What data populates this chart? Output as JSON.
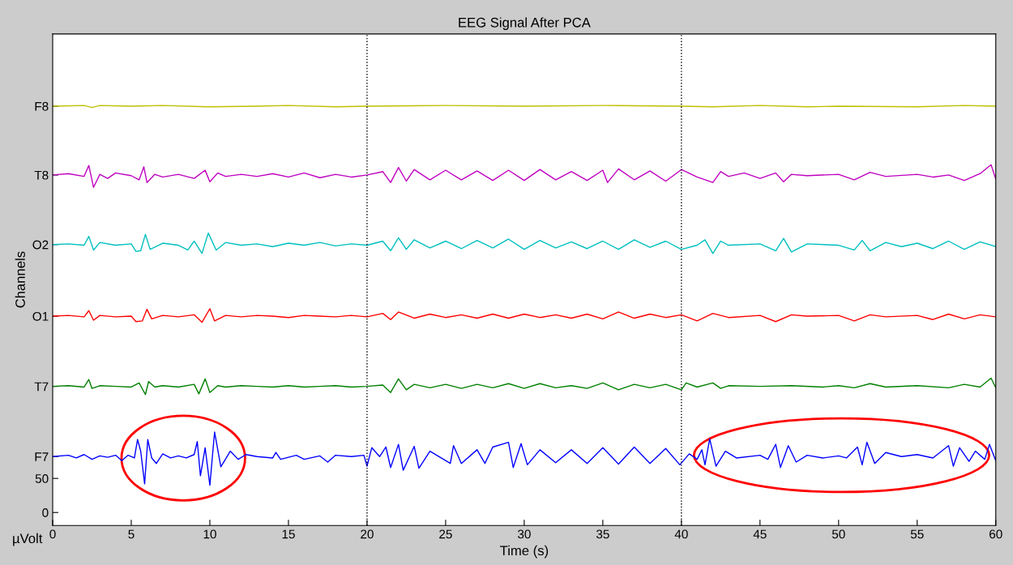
{
  "chart_data": {
    "type": "line",
    "title": "EEG Signal After PCA",
    "xlabel": "Time (s)",
    "ylabel": "Channels",
    "annotations": [
      "µVolt"
    ],
    "xlim": [
      0,
      60
    ],
    "xticks": [
      0,
      5,
      10,
      15,
      20,
      25,
      30,
      35,
      40,
      45,
      50,
      55,
      60
    ],
    "ylim": [
      -19,
      702
    ],
    "yticks": [
      0,
      50,
      {
        "value": 82,
        "label": "F7"
      },
      {
        "value": 185,
        "label": "T7"
      },
      {
        "value": 288,
        "label": "O1"
      },
      {
        "value": 393,
        "label": "O2"
      },
      {
        "value": 495,
        "label": "T8"
      },
      {
        "value": 596,
        "label": "F8"
      }
    ],
    "grid": false,
    "legend": false,
    "marker": "none",
    "line_style": "solid",
    "ref_lines": [
      {
        "axis": "x",
        "value": 20,
        "color": "#000000",
        "line_style": "dotted"
      },
      {
        "axis": "x",
        "value": 40,
        "color": "#000000",
        "line_style": "dotted"
      }
    ],
    "series": [
      {
        "color": "#0000ff",
        "x": [
          0,
          1,
          1.5,
          2,
          2.5,
          3,
          3.5,
          4,
          4.4,
          4.8,
          5.2,
          5.4,
          5.6,
          5.85,
          6.05,
          6.3,
          6.6,
          7.0,
          7.5,
          8,
          8.5,
          9.0,
          9.2,
          9.4,
          9.7,
          10.0,
          10.3,
          10.7,
          11.3,
          11.8,
          12.3,
          13,
          14,
          14.2,
          14.5,
          15.5,
          16,
          17,
          17.5,
          18,
          19,
          19.8,
          20.0,
          20.3,
          20.8,
          21.2,
          21.5,
          22,
          22.3,
          23,
          23.3,
          24,
          25.3,
          25.5,
          26,
          27,
          27.5,
          28,
          29,
          29.3,
          29.8,
          30.2,
          31,
          32,
          33,
          34,
          35,
          36,
          37,
          38,
          39,
          39.9,
          40.5,
          41,
          41.3,
          41.5,
          41.8,
          42.2,
          42.8,
          43.5,
          45,
          45.5,
          46,
          46.3,
          46.8,
          47.3,
          48,
          49,
          50,
          50.5,
          51.2,
          51.5,
          51.8,
          52.3,
          53,
          54,
          55,
          56,
          57,
          57.3,
          57.7,
          58.3,
          58.7,
          59.3,
          59.6,
          60
        ],
        "values": [
          82,
          84,
          80,
          85,
          78,
          83,
          81,
          84,
          76,
          84,
          80,
          107,
          90,
          42,
          107,
          80,
          72,
          86,
          80,
          83,
          80,
          85,
          104,
          54,
          95,
          40,
          118,
          67,
          90,
          78,
          85,
          82,
          80,
          88,
          78,
          84,
          78,
          83,
          74,
          84,
          82,
          84,
          68,
          95,
          82,
          96,
          66,
          100,
          62,
          97,
          65,
          90,
          72,
          98,
          72,
          92,
          72,
          96,
          103,
          66,
          101,
          70,
          92,
          73,
          92,
          72,
          95,
          71,
          96,
          72,
          94,
          70,
          86,
          78,
          92,
          70,
          108,
          68,
          90,
          80,
          84,
          78,
          100,
          66,
          98,
          74,
          84,
          80,
          83,
          80,
          96,
          70,
          103,
          72,
          88,
          82,
          85,
          80,
          98,
          68,
          95,
          75,
          90,
          78,
          100,
          76
        ]
      },
      {
        "color": "#008000",
        "x": [
          0,
          1,
          2,
          2.3,
          2.5,
          3,
          4,
          5,
          5.5,
          5.9,
          6.1,
          6.5,
          7,
          8,
          9,
          9.3,
          9.7,
          10,
          10.5,
          11,
          12,
          13,
          14,
          15,
          16,
          17,
          18,
          19,
          20,
          21,
          21.5,
          22,
          22.5,
          23,
          24,
          25,
          26,
          27,
          28,
          29,
          30,
          31,
          32,
          33,
          34,
          35,
          36,
          37,
          38,
          39,
          40,
          40.3,
          41,
          42,
          42.5,
          43,
          45,
          47,
          49,
          50,
          51,
          52,
          53,
          55,
          57,
          58,
          59,
          59.7,
          60
        ],
        "values": [
          185,
          186,
          184,
          195,
          182,
          186,
          185,
          184,
          190,
          173,
          192,
          184,
          186,
          184,
          188,
          174,
          196,
          176,
          186,
          184,
          186,
          185,
          184,
          186,
          184,
          185,
          186,
          184,
          185,
          187,
          176,
          196,
          180,
          188,
          183,
          188,
          182,
          188,
          183,
          189,
          182,
          189,
          183,
          186,
          182,
          190,
          180,
          188,
          183,
          188,
          180,
          190,
          184,
          190,
          182,
          186,
          185,
          186,
          184,
          186,
          183,
          189,
          184,
          186,
          183,
          188,
          184,
          197,
          183
        ]
      },
      {
        "color": "#ff0000",
        "x": [
          0,
          1,
          2,
          2.3,
          2.6,
          3,
          4,
          5,
          5.3,
          5.7,
          6.0,
          6.3,
          7,
          8,
          9,
          9.5,
          10.0,
          10.3,
          11,
          12,
          13,
          14,
          15,
          16,
          17,
          18,
          19,
          20,
          21,
          21.5,
          22,
          23,
          24,
          25,
          26,
          27,
          28,
          29,
          30,
          31,
          32,
          33,
          34,
          35,
          36,
          37,
          38,
          39,
          40,
          41,
          42,
          43,
          45,
          46,
          47,
          48,
          50,
          51,
          52,
          53,
          55,
          56,
          57,
          58,
          59,
          60
        ],
        "values": [
          288,
          289,
          287,
          296,
          282,
          289,
          287,
          288,
          280,
          281,
          298,
          284,
          289,
          287,
          290,
          279,
          299,
          281,
          289,
          287,
          289,
          288,
          286,
          289,
          288,
          287,
          289,
          287,
          292,
          283,
          294,
          285,
          291,
          286,
          290,
          285,
          291,
          285,
          291,
          286,
          290,
          285,
          291,
          284,
          294,
          285,
          291,
          286,
          290,
          281,
          292,
          286,
          289,
          280,
          290,
          288,
          289,
          281,
          290,
          287,
          289,
          283,
          291,
          284,
          290,
          287
        ]
      },
      {
        "color": "#00bfbf",
        "x": [
          0,
          1,
          2,
          2.3,
          2.6,
          3,
          4,
          5,
          5.3,
          5.6,
          5.9,
          6.2,
          7,
          8,
          8.6,
          9.0,
          9.5,
          9.9,
          10.4,
          11,
          12,
          13,
          14,
          15,
          16,
          17,
          18,
          19,
          20,
          21,
          21.5,
          22,
          22.5,
          23,
          24,
          25,
          26,
          27,
          28,
          29,
          30,
          31,
          32,
          33,
          34,
          35,
          36,
          37,
          38,
          39,
          40,
          41,
          41.5,
          42,
          42.5,
          43,
          45,
          46,
          46.5,
          47,
          48,
          50,
          51,
          51.5,
          52,
          53,
          54,
          55,
          56,
          57,
          58,
          59,
          60
        ],
        "values": [
          393,
          394,
          392,
          405,
          385,
          396,
          392,
          394,
          383,
          384,
          408,
          386,
          395,
          392,
          385,
          398,
          380,
          410,
          385,
          396,
          392,
          394,
          390,
          395,
          392,
          396,
          391,
          394,
          392,
          398,
          384,
          403,
          386,
          400,
          388,
          398,
          387,
          399,
          388,
          401,
          386,
          399,
          388,
          397,
          387,
          398,
          386,
          400,
          389,
          398,
          386,
          392,
          400,
          380,
          398,
          392,
          394,
          384,
          402,
          382,
          394,
          392,
          385,
          399,
          384,
          396,
          390,
          395,
          387,
          398,
          386,
          397,
          390
        ]
      },
      {
        "color": "#bf00bf",
        "x": [
          0,
          1,
          2,
          2.3,
          2.6,
          3,
          3.5,
          4,
          5,
          5.5,
          5.8,
          6.0,
          6.5,
          7,
          8,
          9,
          9.7,
          10,
          10.5,
          11,
          12,
          13,
          14,
          15,
          16,
          17,
          18,
          19,
          20,
          21,
          21.5,
          22,
          22.5,
          23,
          24,
          25,
          26,
          27,
          28,
          29,
          30,
          31,
          32,
          33,
          34,
          35,
          35.3,
          36,
          37,
          38,
          39,
          40,
          41,
          42,
          42.5,
          43,
          44,
          45,
          46,
          46.5,
          47,
          48,
          50,
          51,
          52,
          53,
          55,
          56,
          57,
          58,
          59,
          59.7,
          60
        ],
        "values": [
          495,
          497,
          493,
          509,
          477,
          496,
          490,
          498,
          494,
          488,
          507,
          484,
          496,
          492,
          496,
          490,
          502,
          485,
          498,
          493,
          496,
          493,
          497,
          492,
          498,
          491,
          496,
          492,
          495,
          500,
          484,
          506,
          486,
          503,
          488,
          502,
          488,
          501,
          487,
          502,
          487,
          503,
          488,
          500,
          487,
          502,
          484,
          504,
          488,
          501,
          486,
          503,
          492,
          484,
          500,
          493,
          498,
          490,
          498,
          485,
          496,
          494,
          496,
          488,
          499,
          493,
          496,
          492,
          495,
          487,
          497,
          510,
          489
        ]
      },
      {
        "color": "#bfbf00",
        "x": [
          0,
          2,
          2.5,
          3,
          5,
          7,
          10,
          13,
          15,
          18,
          20,
          25,
          30,
          35,
          40,
          42,
          45,
          48,
          50,
          55,
          58,
          60
        ],
        "values": [
          596,
          597,
          594,
          597,
          596,
          597,
          595,
          596,
          597,
          595,
          596,
          597,
          596,
          597,
          596,
          595,
          597,
          595,
          596,
          595,
          597,
          596
        ]
      }
    ]
  }
}
